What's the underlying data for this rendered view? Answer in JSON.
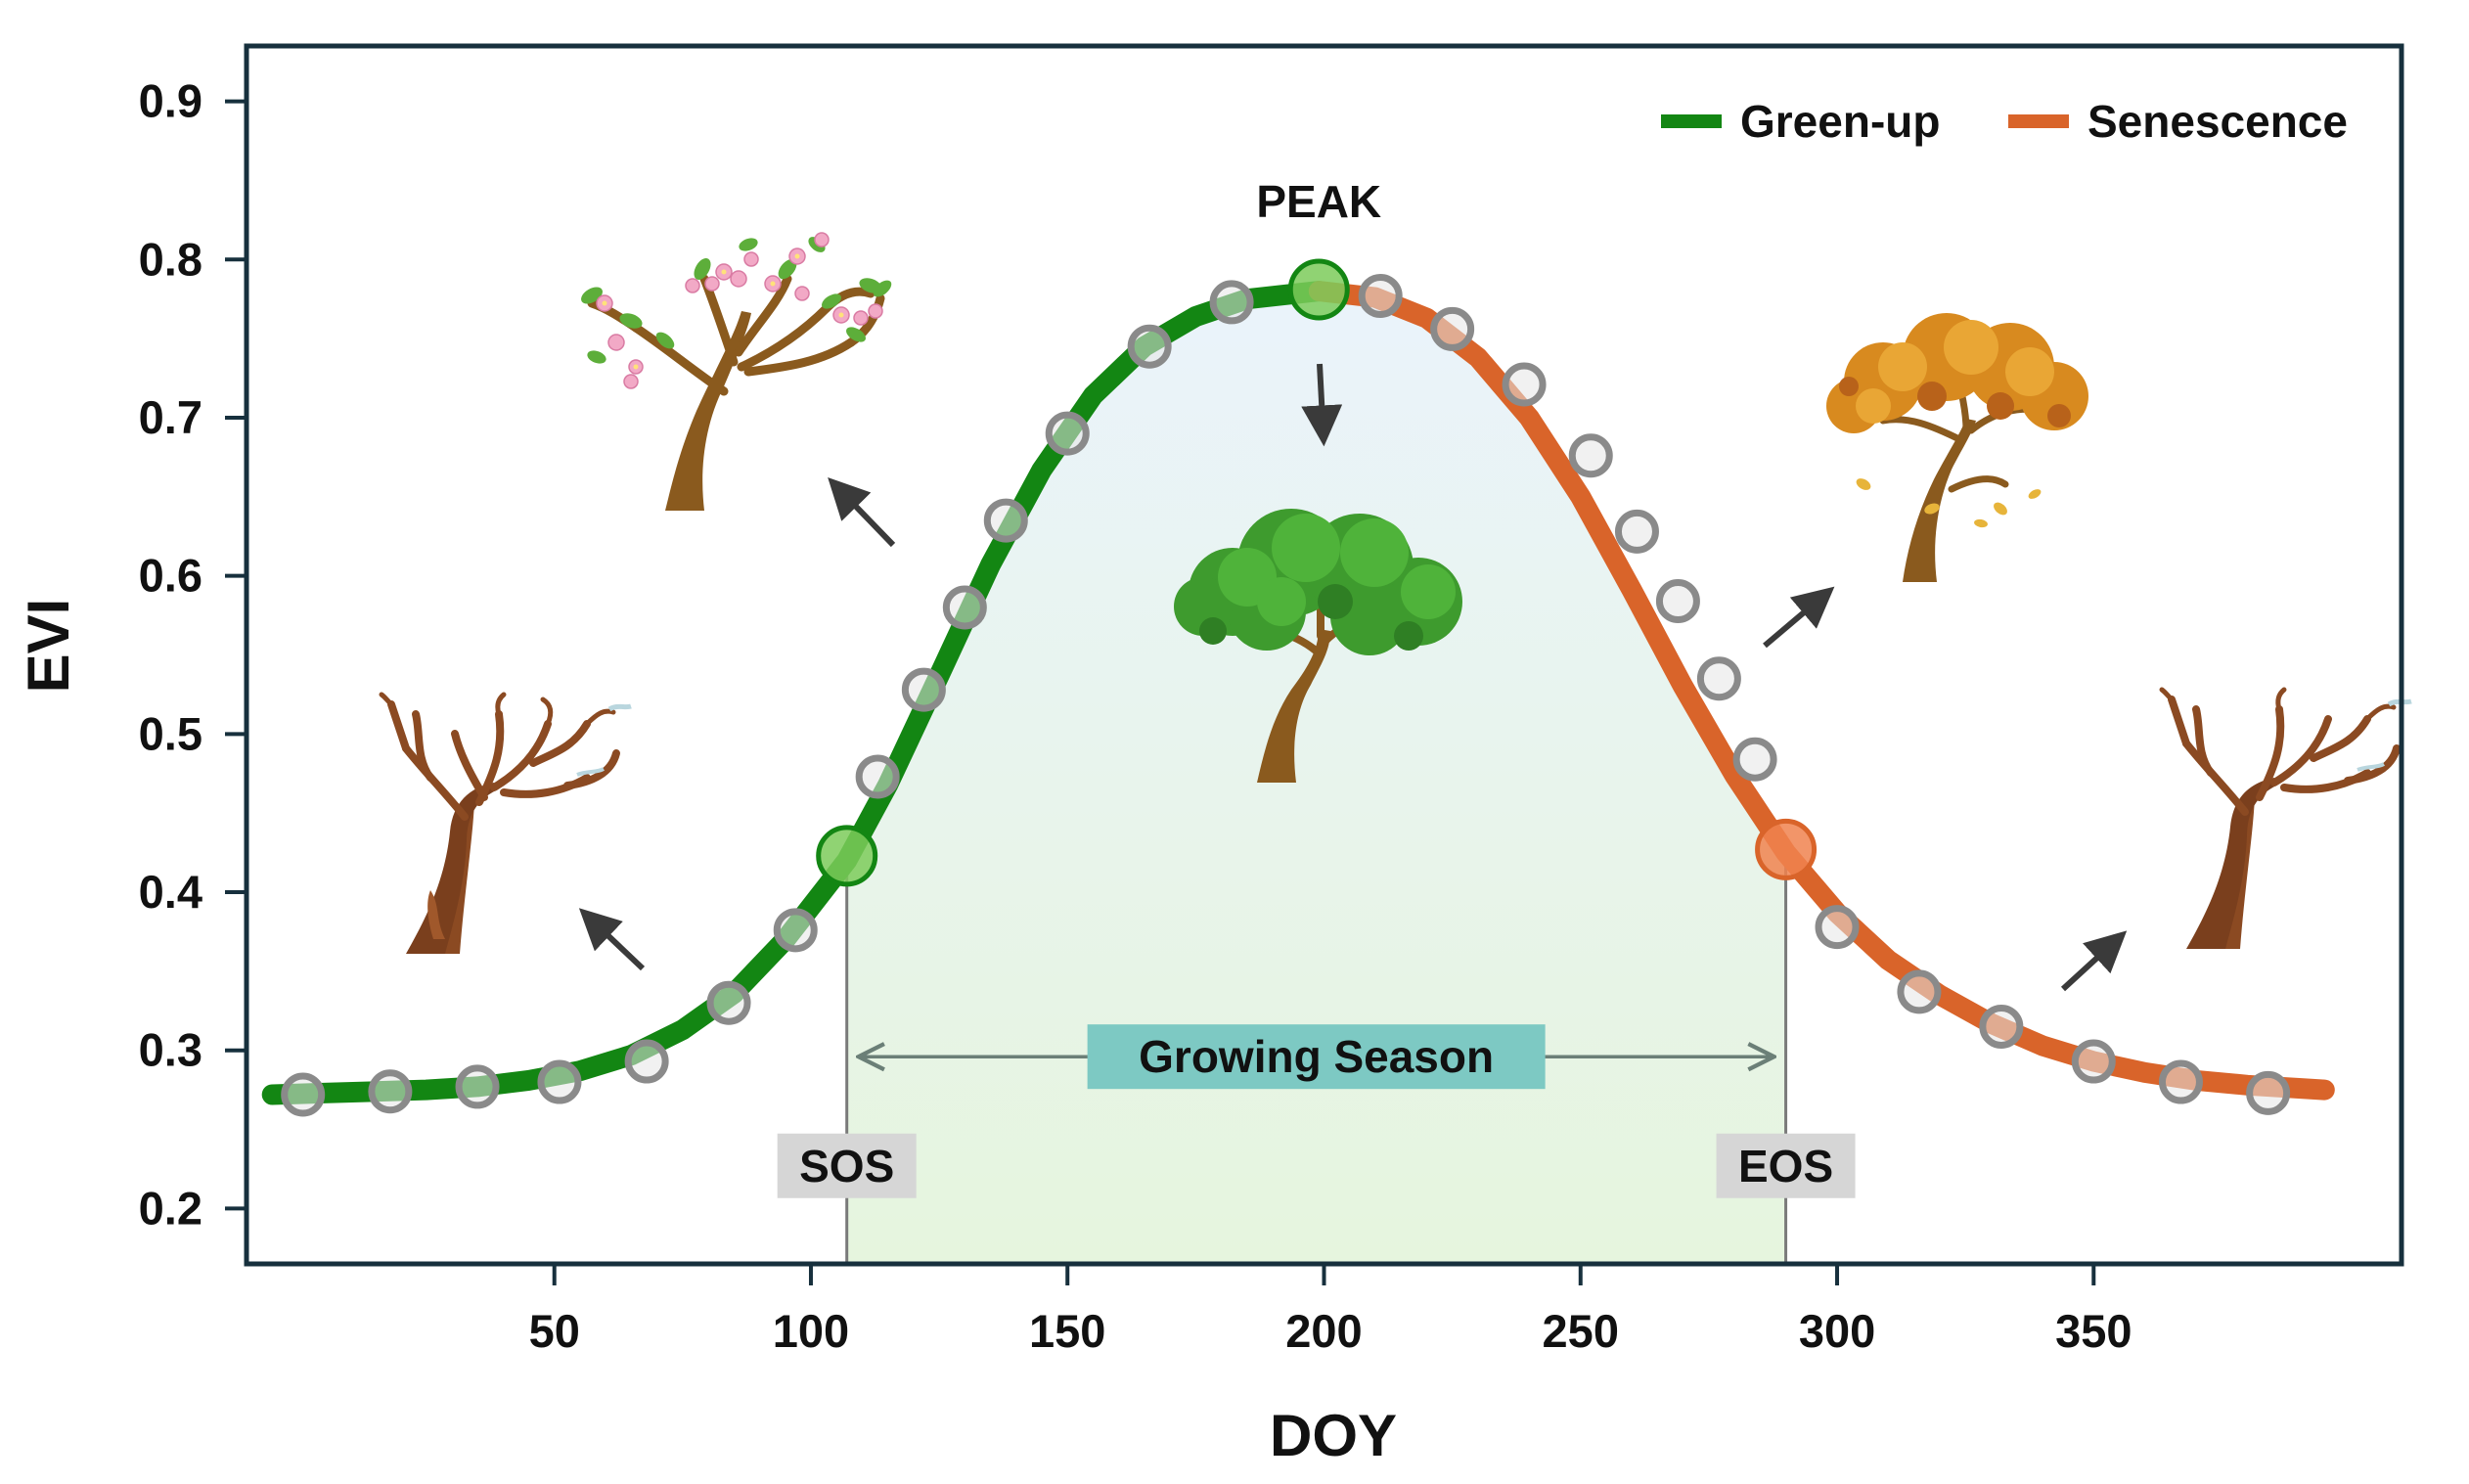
{
  "colors": {
    "greenup": "#138613",
    "senescence": "#D9642A",
    "frame": "#17303D",
    "obs_marker": "#8A8A8A",
    "sos_marker": "#7CCB5A",
    "peak_marker": "#7CCB5A",
    "eos_marker": "#F0834F",
    "season_box": "#7DC9C3",
    "label_box": "#D6D6D6",
    "arrow": "#3A3A3A"
  },
  "chart_data": {
    "type": "line",
    "title": "",
    "xlabel": "DOY",
    "ylabel": "EVI",
    "xlim": [
      -10,
      410
    ],
    "ylim": [
      0.165,
      0.935
    ],
    "xticks": [
      50,
      100,
      150,
      200,
      250,
      300,
      350
    ],
    "yticks": [
      0.2,
      0.3,
      0.4,
      0.5,
      0.6,
      0.7,
      0.8,
      0.9
    ],
    "xtick_labels": [
      "50",
      "100",
      "150",
      "200",
      "250",
      "300",
      "350"
    ],
    "ytick_labels": [
      "0.2",
      "0.3",
      "0.4",
      "0.5",
      "0.6",
      "0.7",
      "0.8",
      "0.9"
    ],
    "grid": false,
    "legend": {
      "position": "top-right",
      "entries": [
        "Green-up",
        "Senescence"
      ]
    },
    "series": [
      {
        "name": "Green-up",
        "color": "#138613",
        "x": [
          -5,
          5,
          15,
          25,
          35,
          45,
          55,
          65,
          75,
          85,
          95,
          107,
          115,
          125,
          135,
          145,
          155,
          165,
          175,
          185,
          199
        ],
        "y": [
          0.272,
          0.273,
          0.274,
          0.275,
          0.277,
          0.281,
          0.287,
          0.297,
          0.313,
          0.336,
          0.37,
          0.42,
          0.468,
          0.537,
          0.607,
          0.667,
          0.714,
          0.745,
          0.764,
          0.775,
          0.78
        ]
      },
      {
        "name": "Senescence",
        "color": "#D9642A",
        "x": [
          199,
          210,
          220,
          230,
          240,
          250,
          260,
          270,
          280,
          290,
          300,
          310,
          320,
          330,
          340,
          350,
          360,
          370,
          380,
          390,
          395
        ],
        "y": [
          0.78,
          0.776,
          0.763,
          0.738,
          0.7,
          0.65,
          0.591,
          0.53,
          0.474,
          0.425,
          0.387,
          0.357,
          0.335,
          0.317,
          0.303,
          0.293,
          0.286,
          0.281,
          0.278,
          0.276,
          0.275
        ]
      }
    ],
    "observations": {
      "x": [
        1,
        18,
        35,
        51,
        68,
        84,
        97,
        113,
        122,
        130,
        138,
        150,
        166,
        182,
        211,
        225,
        239,
        252,
        261,
        269,
        277,
        284,
        300,
        316,
        332,
        350,
        367,
        384
      ],
      "y": [
        0.272,
        0.274,
        0.277,
        0.28,
        0.293,
        0.33,
        0.376,
        0.473,
        0.528,
        0.58,
        0.635,
        0.69,
        0.745,
        0.773,
        0.777,
        0.756,
        0.721,
        0.676,
        0.628,
        0.584,
        0.535,
        0.484,
        0.378,
        0.337,
        0.315,
        0.293,
        0.28,
        0.273
      ]
    },
    "key_points": {
      "sos": {
        "x": 107,
        "y": 0.423
      },
      "peak": {
        "x": 199,
        "y": 0.781
      },
      "eos": {
        "x": 290,
        "y": 0.427
      }
    },
    "annotations": {
      "peak": "PEAK",
      "sos": "SOS",
      "eos": "EOS",
      "season": "Growing Season"
    }
  }
}
